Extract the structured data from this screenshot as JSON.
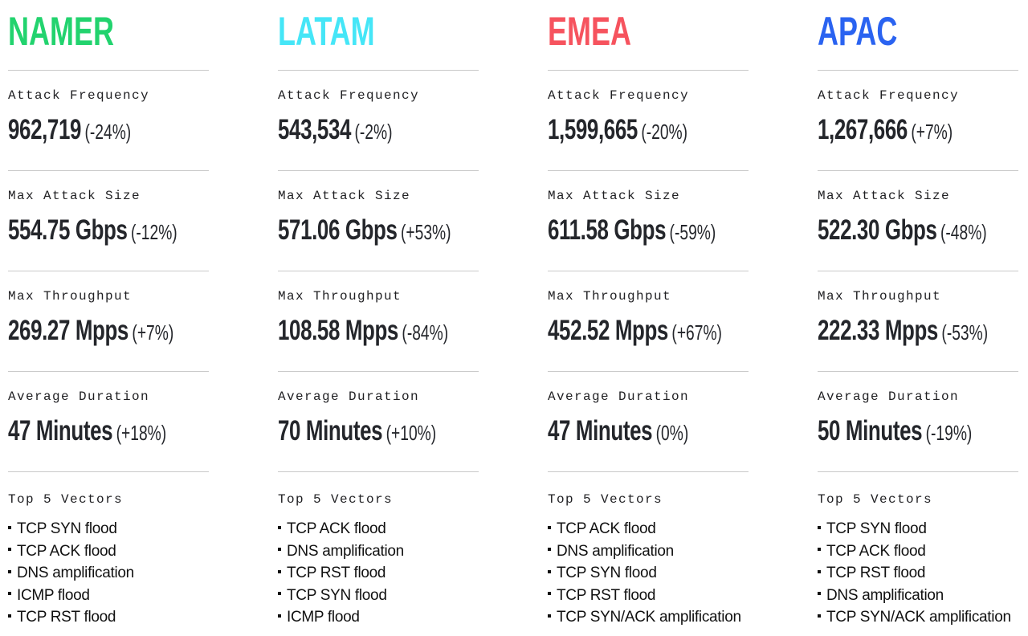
{
  "labels": {
    "attack_frequency": "Attack Frequency",
    "max_attack_size": "Max Attack Size",
    "max_throughput": "Max Throughput",
    "average_duration": "Average Duration",
    "top_vectors": "Top 5 Vectors"
  },
  "regions": [
    {
      "name": "NAMER",
      "color": "#22d36e",
      "attack_frequency": {
        "value": "962,719",
        "delta": "(-24%)"
      },
      "max_attack_size": {
        "value": "554.75 Gbps",
        "delta": "(-12%)"
      },
      "max_throughput": {
        "value": "269.27 Mpps",
        "delta": "(+7%)"
      },
      "average_duration": {
        "value": "47 Minutes",
        "delta": "(+18%)"
      },
      "vectors": [
        "TCP SYN flood",
        "TCP ACK flood",
        "DNS amplification",
        "ICMP flood",
        "TCP RST flood"
      ]
    },
    {
      "name": "LATAM",
      "color": "#45e6f7",
      "attack_frequency": {
        "value": "543,534",
        "delta": "(-2%)"
      },
      "max_attack_size": {
        "value": "571.06 Gbps",
        "delta": "(+53%)"
      },
      "max_throughput": {
        "value": "108.58 Mpps",
        "delta": "(-84%)"
      },
      "average_duration": {
        "value": "70 Minutes",
        "delta": "(+10%)"
      },
      "vectors": [
        "TCP ACK flood",
        "DNS amplification",
        "TCP RST flood",
        "TCP SYN flood",
        "ICMP flood"
      ]
    },
    {
      "name": "EMEA",
      "color": "#f6535e",
      "attack_frequency": {
        "value": "1,599,665",
        "delta": "(-20%)"
      },
      "max_attack_size": {
        "value": "611.58 Gbps",
        "delta": "(-59%)"
      },
      "max_throughput": {
        "value": "452.52 Mpps",
        "delta": "(+67%)"
      },
      "average_duration": {
        "value": "47 Minutes",
        "delta": "(0%)"
      },
      "vectors": [
        "TCP ACK flood",
        "DNS amplification",
        "TCP SYN flood",
        "TCP RST flood",
        "TCP SYN/ACK amplification"
      ]
    },
    {
      "name": "APAC",
      "color": "#2a63f1",
      "attack_frequency": {
        "value": "1,267,666",
        "delta": "(+7%)"
      },
      "max_attack_size": {
        "value": "522.30 Gbps",
        "delta": "(-48%)"
      },
      "max_throughput": {
        "value": "222.33 Mpps",
        "delta": "(-53%)"
      },
      "average_duration": {
        "value": "50 Minutes",
        "delta": "(-19%)"
      },
      "vectors": [
        "TCP SYN flood",
        "TCP ACK flood",
        "TCP RST flood",
        "DNS amplification",
        "TCP SYN/ACK amplification"
      ]
    }
  ]
}
